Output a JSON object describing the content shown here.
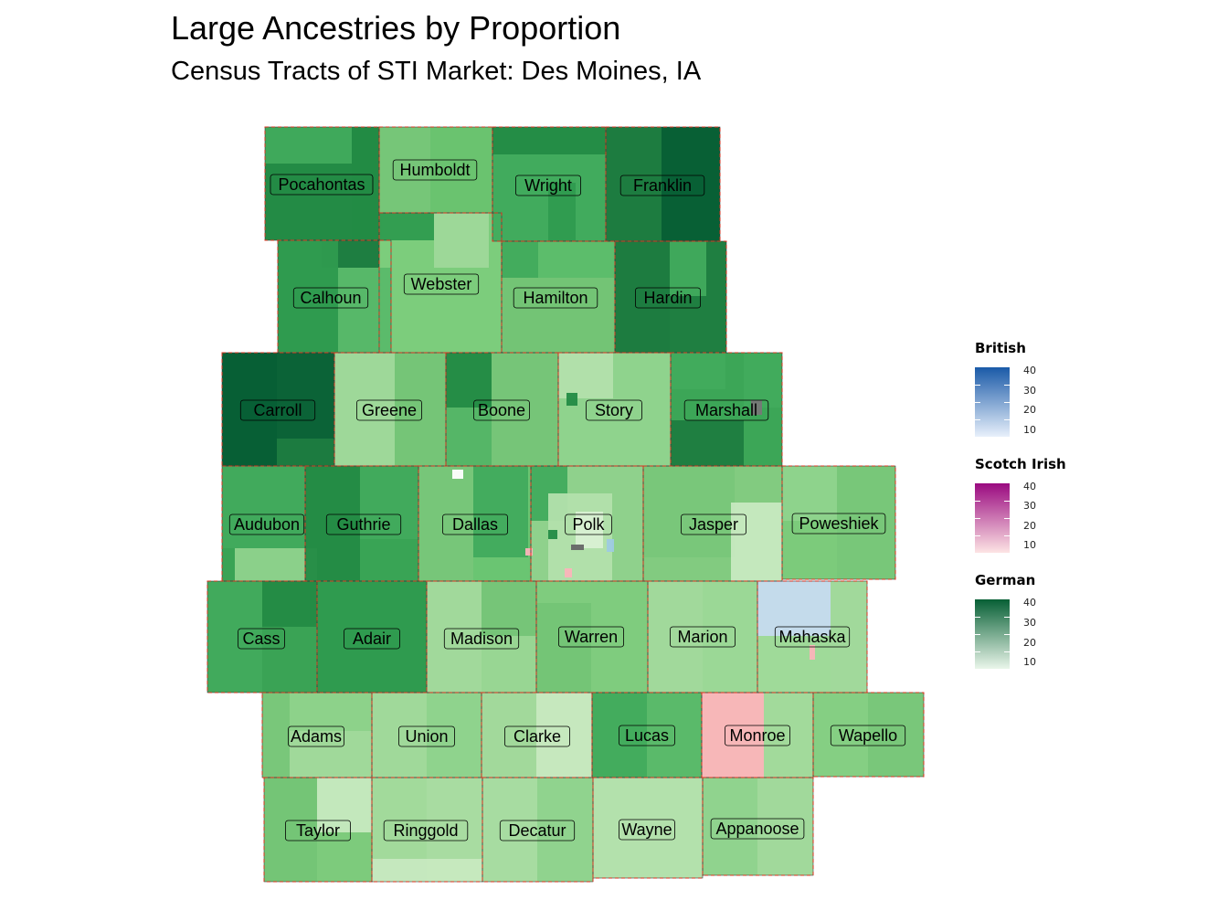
{
  "title": "Large Ancestries by Proportion",
  "subtitle": "Census Tracts of STI Market: Des Moines, IA",
  "legends": [
    {
      "title": "British",
      "ticks": [
        "40",
        "30",
        "20",
        "10"
      ],
      "low": "#e8f0fb",
      "high": "#1a5aa8"
    },
    {
      "title": "Scotch Irish",
      "ticks": [
        "40",
        "30",
        "20",
        "10"
      ],
      "low": "#fde4e4",
      "high": "#9a0a80"
    },
    {
      "title": "German",
      "ticks": [
        "40",
        "30",
        "20",
        "10"
      ],
      "low": "#eaf6ea",
      "high": "#075f35"
    }
  ],
  "counties": [
    {
      "name": "Pocahontas",
      "color": "#238b45"
    },
    {
      "name": "Humboldt",
      "color": "#5ab96a"
    },
    {
      "name": "Wright",
      "color": "#41ab5d"
    },
    {
      "name": "Franklin",
      "color": "#1d7c40"
    },
    {
      "name": "Calhoun",
      "color": "#2f9b4f"
    },
    {
      "name": "Webster",
      "color": "#7ccd7c"
    },
    {
      "name": "Hamilton",
      "color": "#5cbd6b"
    },
    {
      "name": "Hardin",
      "color": "#1f7f41"
    },
    {
      "name": "Carroll",
      "color": "#0b6337"
    },
    {
      "name": "Greene",
      "color": "#86d085"
    },
    {
      "name": "Boone",
      "color": "#55b667"
    },
    {
      "name": "Story",
      "color": "#8fd38d"
    },
    {
      "name": "Marshall",
      "color": "#3ca657"
    },
    {
      "name": "Audubon",
      "color": "#3aa355"
    },
    {
      "name": "Guthrie",
      "color": "#39a455"
    },
    {
      "name": "Dallas",
      "color": "#6ac572"
    },
    {
      "name": "Polk",
      "color": "#8fd18c"
    },
    {
      "name": "Jasper",
      "color": "#82cb80"
    },
    {
      "name": "Poweshiek",
      "color": "#7ccb7b"
    },
    {
      "name": "Cass",
      "color": "#3aa355"
    },
    {
      "name": "Adair",
      "color": "#35a151"
    },
    {
      "name": "Madison",
      "color": "#98d693"
    },
    {
      "name": "Warren",
      "color": "#7fcc7e"
    },
    {
      "name": "Marion",
      "color": "#9bd896"
    },
    {
      "name": "Mahaska",
      "color": "#9fda99"
    },
    {
      "name": "Adams",
      "color": "#8dd28a"
    },
    {
      "name": "Union",
      "color": "#8fd38c"
    },
    {
      "name": "Clarke",
      "color": "#a5db9e"
    },
    {
      "name": "Lucas",
      "color": "#5cbc6a"
    },
    {
      "name": "Monroe",
      "color": "#a8dca0"
    },
    {
      "name": "Wapello",
      "color": "#85cf83"
    },
    {
      "name": "Taylor",
      "color": "#7dcb7c"
    },
    {
      "name": "Ringgold",
      "color": "#a8dca1"
    },
    {
      "name": "Decatur",
      "color": "#a3da9c"
    },
    {
      "name": "Wayne",
      "color": "#aedfa6"
    },
    {
      "name": "Appanoose",
      "color": "#a1d99a"
    }
  ]
}
